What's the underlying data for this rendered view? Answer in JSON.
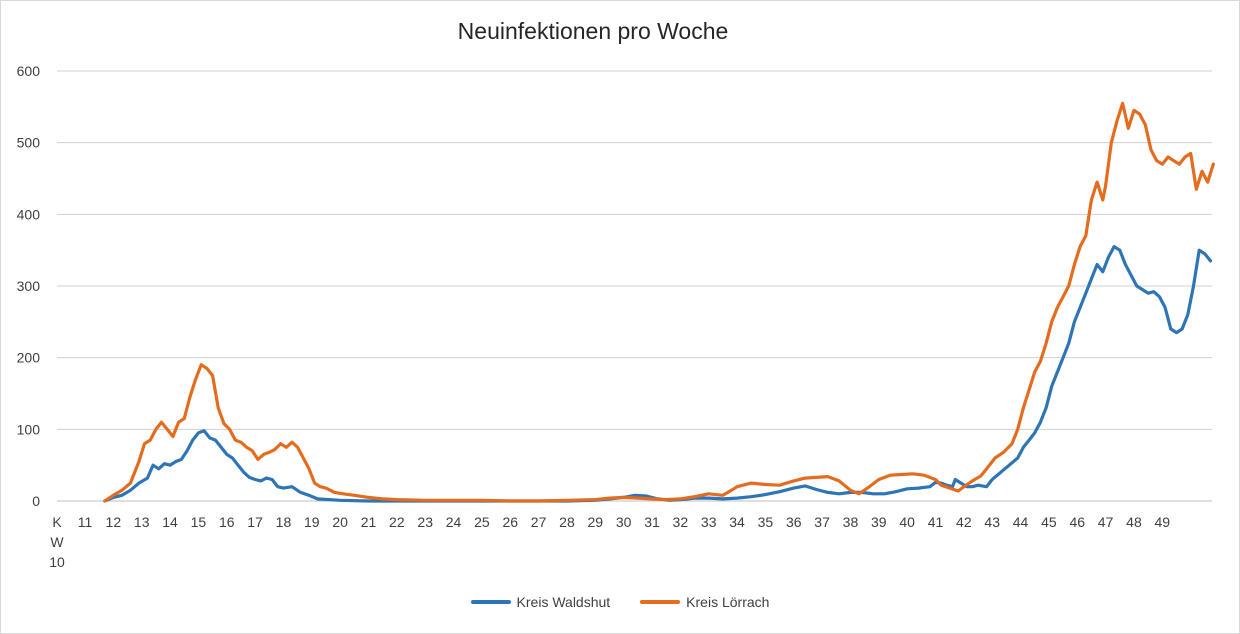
{
  "chart_data": {
    "type": "line",
    "title": "Neuinfektionen pro Woche",
    "xlabel": "",
    "ylabel": "",
    "ylim": [
      0,
      600
    ],
    "yticks": [
      "0",
      "100",
      "200",
      "300",
      "400",
      "500",
      "600"
    ],
    "xtick_first": [
      "K",
      "W",
      "10"
    ],
    "xticks": [
      "11",
      "12",
      "13",
      "14",
      "15",
      "16",
      "17",
      "18",
      "19",
      "20",
      "21",
      "22",
      "23",
      "24",
      "25",
      "26",
      "27",
      "28",
      "29",
      "30",
      "31",
      "32",
      "33",
      "34",
      "35",
      "36",
      "37",
      "38",
      "39",
      "40",
      "41",
      "42",
      "43",
      "44",
      "45",
      "46",
      "47",
      "48",
      "49"
    ],
    "grid": true,
    "legend": "bottom",
    "series": [
      {
        "name": "Kreis Waldshut",
        "color": "#2e75b6",
        "points": [
          [
            11.7,
            0
          ],
          [
            12.0,
            5
          ],
          [
            12.3,
            8
          ],
          [
            12.6,
            15
          ],
          [
            12.9,
            25
          ],
          [
            13.2,
            32
          ],
          [
            13.4,
            50
          ],
          [
            13.6,
            45
          ],
          [
            13.8,
            52
          ],
          [
            14.0,
            50
          ],
          [
            14.2,
            55
          ],
          [
            14.4,
            58
          ],
          [
            14.6,
            70
          ],
          [
            14.8,
            85
          ],
          [
            15.0,
            95
          ],
          [
            15.2,
            98
          ],
          [
            15.4,
            88
          ],
          [
            15.6,
            85
          ],
          [
            15.8,
            75
          ],
          [
            16.0,
            65
          ],
          [
            16.2,
            60
          ],
          [
            16.4,
            50
          ],
          [
            16.6,
            40
          ],
          [
            16.8,
            33
          ],
          [
            17.0,
            30
          ],
          [
            17.2,
            28
          ],
          [
            17.4,
            32
          ],
          [
            17.6,
            30
          ],
          [
            17.8,
            20
          ],
          [
            18.0,
            18
          ],
          [
            18.3,
            20
          ],
          [
            18.6,
            12
          ],
          [
            18.9,
            8
          ],
          [
            19.2,
            3
          ],
          [
            19.6,
            2
          ],
          [
            20.0,
            1
          ],
          [
            21.0,
            0
          ],
          [
            22.0,
            0
          ],
          [
            23.0,
            0
          ],
          [
            24.0,
            0
          ],
          [
            25.0,
            0
          ],
          [
            26.0,
            0
          ],
          [
            27.0,
            0
          ],
          [
            28.0,
            0
          ],
          [
            29.0,
            1
          ],
          [
            29.5,
            3
          ],
          [
            30.0,
            5
          ],
          [
            30.4,
            8
          ],
          [
            30.8,
            7
          ],
          [
            31.2,
            3
          ],
          [
            31.6,
            1
          ],
          [
            32.0,
            2
          ],
          [
            32.5,
            4
          ],
          [
            33.0,
            4
          ],
          [
            33.5,
            3
          ],
          [
            34.0,
            4
          ],
          [
            34.5,
            6
          ],
          [
            35.0,
            9
          ],
          [
            35.5,
            13
          ],
          [
            36.0,
            18
          ],
          [
            36.4,
            21
          ],
          [
            36.8,
            16
          ],
          [
            37.2,
            12
          ],
          [
            37.6,
            10
          ],
          [
            38.0,
            12
          ],
          [
            38.4,
            12
          ],
          [
            38.8,
            10
          ],
          [
            39.2,
            10
          ],
          [
            39.6,
            13
          ],
          [
            40.0,
            17
          ],
          [
            40.4,
            18
          ],
          [
            40.8,
            20
          ],
          [
            41.0,
            26
          ],
          [
            41.2,
            25
          ],
          [
            41.4,
            22
          ],
          [
            41.6,
            20
          ],
          [
            41.7,
            30
          ],
          [
            41.9,
            25
          ],
          [
            42.1,
            20
          ],
          [
            42.3,
            20
          ],
          [
            42.5,
            22
          ],
          [
            42.8,
            20
          ],
          [
            43.0,
            30
          ],
          [
            43.3,
            40
          ],
          [
            43.6,
            50
          ],
          [
            43.9,
            60
          ],
          [
            44.1,
            75
          ],
          [
            44.3,
            85
          ],
          [
            44.5,
            95
          ],
          [
            44.7,
            110
          ],
          [
            44.9,
            130
          ],
          [
            45.1,
            160
          ],
          [
            45.3,
            180
          ],
          [
            45.5,
            200
          ],
          [
            45.7,
            220
          ],
          [
            45.9,
            250
          ],
          [
            46.1,
            270
          ],
          [
            46.3,
            290
          ],
          [
            46.5,
            310
          ],
          [
            46.7,
            330
          ],
          [
            46.9,
            320
          ],
          [
            47.1,
            340
          ],
          [
            47.3,
            355
          ],
          [
            47.5,
            350
          ],
          [
            47.7,
            330
          ],
          [
            47.9,
            315
          ],
          [
            48.1,
            300
          ],
          [
            48.3,
            295
          ],
          [
            48.5,
            290
          ],
          [
            48.7,
            292
          ],
          [
            48.9,
            285
          ],
          [
            49.1,
            270
          ],
          [
            49.3,
            240
          ],
          [
            49.5,
            235
          ],
          [
            49.7,
            240
          ],
          [
            49.9,
            260
          ],
          [
            50.1,
            300
          ],
          [
            50.3,
            350
          ],
          [
            50.5,
            345
          ],
          [
            50.7,
            335
          ]
        ]
      },
      {
        "name": "Kreis Lörrach",
        "color": "#e46c1f",
        "points": [
          [
            11.7,
            0
          ],
          [
            12.0,
            8
          ],
          [
            12.3,
            15
          ],
          [
            12.6,
            25
          ],
          [
            12.9,
            55
          ],
          [
            13.1,
            80
          ],
          [
            13.3,
            85
          ],
          [
            13.5,
            100
          ],
          [
            13.7,
            110
          ],
          [
            13.9,
            100
          ],
          [
            14.1,
            90
          ],
          [
            14.3,
            110
          ],
          [
            14.5,
            115
          ],
          [
            14.7,
            145
          ],
          [
            14.9,
            170
          ],
          [
            15.1,
            190
          ],
          [
            15.3,
            185
          ],
          [
            15.5,
            175
          ],
          [
            15.7,
            130
          ],
          [
            15.9,
            108
          ],
          [
            16.1,
            100
          ],
          [
            16.3,
            85
          ],
          [
            16.5,
            82
          ],
          [
            16.7,
            75
          ],
          [
            16.9,
            70
          ],
          [
            17.1,
            58
          ],
          [
            17.3,
            65
          ],
          [
            17.5,
            68
          ],
          [
            17.7,
            72
          ],
          [
            17.9,
            80
          ],
          [
            18.1,
            75
          ],
          [
            18.3,
            82
          ],
          [
            18.5,
            75
          ],
          [
            18.7,
            60
          ],
          [
            18.9,
            45
          ],
          [
            19.1,
            25
          ],
          [
            19.3,
            20
          ],
          [
            19.5,
            18
          ],
          [
            19.8,
            12
          ],
          [
            20.1,
            10
          ],
          [
            20.5,
            8
          ],
          [
            21.0,
            5
          ],
          [
            21.5,
            3
          ],
          [
            22.0,
            2
          ],
          [
            23.0,
            1
          ],
          [
            24.0,
            1
          ],
          [
            25.0,
            1
          ],
          [
            26.0,
            0
          ],
          [
            27.0,
            0
          ],
          [
            28.0,
            1
          ],
          [
            29.0,
            2
          ],
          [
            29.5,
            4
          ],
          [
            30.0,
            5
          ],
          [
            30.5,
            4
          ],
          [
            31.0,
            3
          ],
          [
            31.5,
            2
          ],
          [
            32.0,
            3
          ],
          [
            32.5,
            6
          ],
          [
            33.0,
            10
          ],
          [
            33.5,
            8
          ],
          [
            33.8,
            15
          ],
          [
            34.0,
            20
          ],
          [
            34.5,
            25
          ],
          [
            35.0,
            23
          ],
          [
            35.5,
            22
          ],
          [
            36.0,
            28
          ],
          [
            36.4,
            32
          ],
          [
            36.8,
            33
          ],
          [
            37.2,
            34
          ],
          [
            37.6,
            28
          ],
          [
            38.0,
            15
          ],
          [
            38.3,
            10
          ],
          [
            38.6,
            18
          ],
          [
            39.0,
            30
          ],
          [
            39.4,
            36
          ],
          [
            39.8,
            37
          ],
          [
            40.2,
            38
          ],
          [
            40.6,
            36
          ],
          [
            41.0,
            30
          ],
          [
            41.2,
            22
          ],
          [
            41.5,
            18
          ],
          [
            41.8,
            14
          ],
          [
            42.0,
            20
          ],
          [
            42.3,
            28
          ],
          [
            42.6,
            35
          ],
          [
            42.9,
            50
          ],
          [
            43.1,
            60
          ],
          [
            43.4,
            68
          ],
          [
            43.7,
            80
          ],
          [
            43.9,
            100
          ],
          [
            44.1,
            130
          ],
          [
            44.3,
            155
          ],
          [
            44.5,
            180
          ],
          [
            44.7,
            195
          ],
          [
            44.9,
            220
          ],
          [
            45.1,
            250
          ],
          [
            45.3,
            270
          ],
          [
            45.5,
            285
          ],
          [
            45.7,
            300
          ],
          [
            45.9,
            330
          ],
          [
            46.1,
            355
          ],
          [
            46.3,
            370
          ],
          [
            46.5,
            420
          ],
          [
            46.7,
            445
          ],
          [
            46.9,
            420
          ],
          [
            47.0,
            440
          ],
          [
            47.2,
            500
          ],
          [
            47.4,
            530
          ],
          [
            47.6,
            555
          ],
          [
            47.8,
            520
          ],
          [
            48.0,
            545
          ],
          [
            48.2,
            540
          ],
          [
            48.4,
            525
          ],
          [
            48.6,
            490
          ],
          [
            48.8,
            475
          ],
          [
            49.0,
            470
          ],
          [
            49.2,
            480
          ],
          [
            49.4,
            475
          ],
          [
            49.6,
            470
          ],
          [
            49.8,
            480
          ],
          [
            50.0,
            485
          ],
          [
            50.2,
            435
          ],
          [
            50.4,
            460
          ],
          [
            50.6,
            445
          ],
          [
            50.8,
            470
          ]
        ]
      }
    ]
  }
}
